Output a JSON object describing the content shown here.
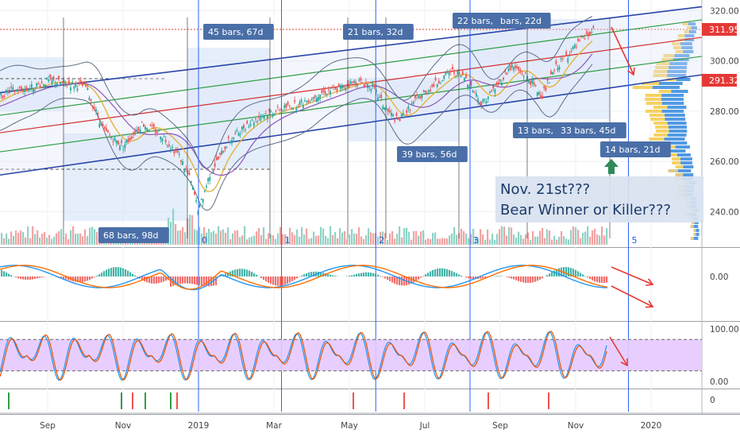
{
  "chart_data": {
    "type": "line",
    "title": "",
    "price_axis": {
      "range": [
        230,
        322
      ],
      "ticks": [
        "320.00",
        "300.00",
        "280.00",
        "260.00",
        "240.00"
      ],
      "tick_values": [
        320,
        300,
        280,
        260,
        240
      ]
    },
    "price_badges": [
      {
        "label": "311.95",
        "value": 311.95,
        "color": "#e53935"
      },
      {
        "label": "291.32",
        "value": 291.32,
        "color": "#e53935"
      }
    ],
    "x_axis": {
      "months": [
        "Sep",
        "Nov",
        "2019",
        "Mar",
        "May",
        "Jul",
        "Sep",
        "Nov",
        "2020"
      ],
      "month_month_index": [
        2.0,
        4.0,
        6.0,
        8.0,
        10.0,
        12.0,
        14.0,
        16.0,
        18.0
      ]
    },
    "price_series": {
      "name": "",
      "month_index": [
        0.0,
        0.5,
        1.0,
        1.5,
        2.0,
        2.5,
        3.0,
        3.5,
        4.0,
        4.5,
        5.0,
        5.5,
        5.8,
        6.0,
        6.3,
        6.8,
        7.3,
        7.8,
        8.2,
        8.7,
        9.2,
        9.7,
        10.2,
        10.6,
        11.0,
        11.3,
        11.8,
        12.3,
        12.7,
        13.1,
        13.5,
        13.9,
        14.3,
        14.7,
        15.1,
        15.5,
        15.9,
        16.3,
        16.5
      ],
      "values": [
        280,
        284,
        288,
        289,
        292,
        291,
        290,
        272,
        266,
        275,
        271,
        262,
        252,
        240,
        255,
        268,
        275,
        279,
        281,
        283,
        287,
        289,
        292,
        290,
        280,
        276,
        285,
        291,
        296,
        293,
        283,
        290,
        298,
        294,
        286,
        298,
        304,
        310,
        312
      ]
    },
    "channel": {
      "month_index_start": 0.0,
      "month_index_end": 19.6,
      "upper": [
        286,
        322
      ],
      "median": [
        268,
        308
      ],
      "lower": [
        253,
        295
      ]
    },
    "cycle_labels": [
      "0",
      "1",
      "2",
      "3",
      "5"
    ],
    "cycle_month_index": [
      6.0,
      8.2,
      10.7,
      13.2,
      17.4
    ],
    "bar_count_labels": [
      "68 bars, 98d",
      "45 bars, 67d",
      "21 bars, 32d",
      "39 bars, 56d",
      "22 bars, 30d",
      "bars, 22d",
      "13 bars, 1",
      "33 bars, 45d",
      "14 bars, 21d"
    ],
    "annotation": {
      "line1": "Nov. 21st???",
      "line2": "Bear Winner or Killer???"
    },
    "macd_axis": {
      "ticks": [
        "0.00"
      ]
    },
    "stoch_axis": {
      "ticks": [
        "100.00",
        "0.00"
      ],
      "band": [
        20,
        80
      ]
    },
    "bottom_axis": {
      "ticks": [
        "0"
      ]
    },
    "volume_bars": [],
    "grid": true,
    "legend": "none"
  },
  "colors": {
    "channel": "#2945a8",
    "median_red": "#d32f2f",
    "median_green": "#2e9e45",
    "bb": "#5e6d8a",
    "ma_fast": "#e3b23c",
    "ma_slow": "#8e55b8",
    "label_bg": "#4a6fa8",
    "macd_blue": "#2196f3",
    "macd_orange": "#ff6d00",
    "stoch_fill": "#e6c9ff"
  }
}
